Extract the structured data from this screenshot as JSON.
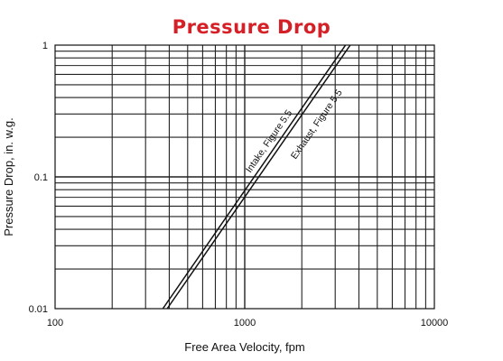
{
  "chart_data": {
    "type": "line",
    "title": "Pressure Drop",
    "xlabel": "Free Area Velocity, fpm",
    "ylabel": "Pressure Drop, in. w.g.",
    "xscale": "log",
    "yscale": "log",
    "xlim": [
      100,
      10000
    ],
    "ylim": [
      0.01,
      1
    ],
    "grid": true,
    "x_ticks": [
      "100",
      "1000",
      "10000"
    ],
    "y_ticks": [
      "0.01",
      "0.1",
      "1"
    ],
    "series": [
      {
        "name": "Intake, Figure 5.5",
        "x": [
          370,
          3400
        ],
        "y": [
          0.01,
          1
        ]
      },
      {
        "name": "Exhaust, Figure 5.5",
        "x": [
          390,
          3600
        ],
        "y": [
          0.01,
          1
        ]
      }
    ],
    "colors": {
      "title": "#d42026",
      "lines": "#111111",
      "grid": "#222222"
    }
  }
}
